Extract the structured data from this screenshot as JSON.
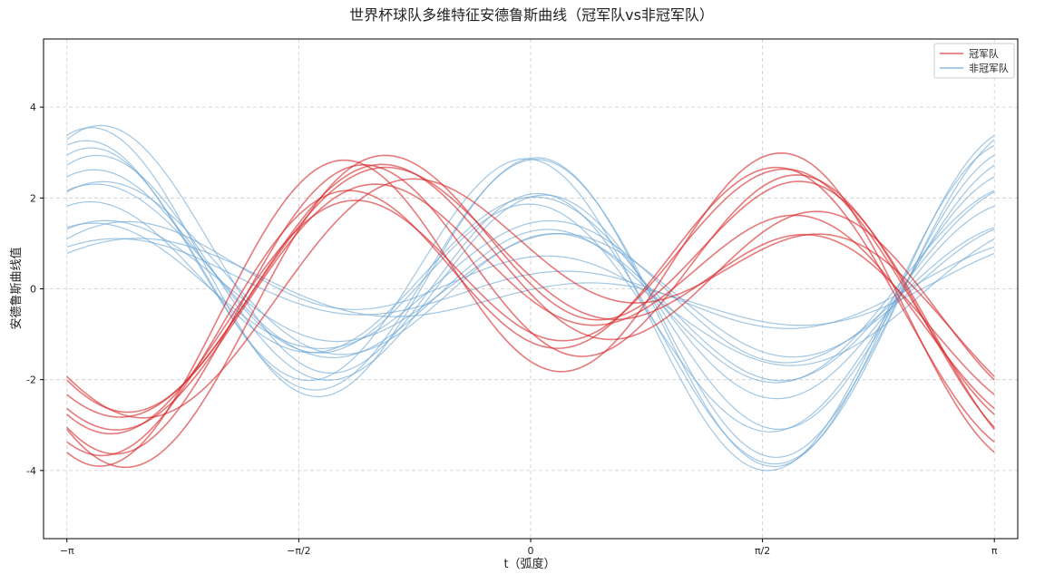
{
  "chart_data": {
    "type": "line",
    "title": "世界杯球队多维特征安德鲁斯曲线（冠军队vs非冠军队）",
    "xlabel": "t（弧度）",
    "ylabel": "安德鲁斯曲线值",
    "xlim": [
      -3.3,
      3.3
    ],
    "ylim": [
      -5.5,
      5.5
    ],
    "xticks": [
      {
        "value": -3.14159,
        "label": "−π"
      },
      {
        "value": -1.5708,
        "label": "−π/2"
      },
      {
        "value": 0,
        "label": "0"
      },
      {
        "value": 1.5708,
        "label": "π/2"
      },
      {
        "value": 3.14159,
        "label": "π"
      }
    ],
    "yticks": [
      {
        "value": -4,
        "label": "-4"
      },
      {
        "value": -2,
        "label": "-2"
      },
      {
        "value": 0,
        "label": "0"
      },
      {
        "value": 2,
        "label": "2"
      },
      {
        "value": 4,
        "label": "4"
      }
    ],
    "grid": true,
    "legend_position": "top-right",
    "legend": [
      {
        "label": "冠军队",
        "color": "#d62728"
      },
      {
        "label": "非冠军队",
        "color": "#6fa8d4"
      }
    ],
    "groups": [
      {
        "name": "冠军队",
        "color": "#d62728",
        "series": [
          {
            "coef": [
              0.2,
              -0.1,
              0.95,
              -1.65,
              -1.2
            ]
          },
          {
            "coef": [
              0.0,
              0.3,
              1.0,
              -1.2,
              -2.6
            ]
          },
          {
            "coef": [
              0.1,
              0.2,
              1.4,
              -1.5,
              -0.6
            ]
          },
          {
            "coef": [
              -0.1,
              0.5,
              1.1,
              -1.0,
              -2.2
            ]
          },
          {
            "coef": [
              0.15,
              0.4,
              1.6,
              -1.8,
              -1.6
            ]
          },
          {
            "coef": [
              -0.05,
              0.1,
              1.2,
              -1.3,
              -1.4
            ]
          },
          {
            "coef": [
              0.05,
              0.6,
              0.9,
              -1.1,
              -1.9
            ]
          },
          {
            "coef": [
              0.1,
              -0.2,
              1.3,
              -1.4,
              -1.1
            ]
          },
          {
            "coef": [
              0.0,
              0.25,
              1.05,
              -1.6,
              -2.0
            ]
          }
        ]
      },
      {
        "name": "非冠军队",
        "color": "#6fa8d4",
        "series": [
          {
            "coef": [
              0.0,
              -0.7,
              -0.2,
              0.55,
              0.9
            ]
          },
          {
            "coef": [
              0.05,
              -0.4,
              -0.5,
              0.7,
              1.6
            ]
          },
          {
            "coef": [
              -0.05,
              -0.9,
              -0.3,
              0.4,
              2.2
            ]
          },
          {
            "coef": [
              0.02,
              -0.2,
              -0.1,
              0.6,
              1.2
            ]
          },
          {
            "coef": [
              -0.02,
              -1.1,
              -0.6,
              0.8,
              2.7
            ]
          },
          {
            "coef": [
              0.03,
              -0.5,
              0.1,
              0.35,
              1.9
            ]
          },
          {
            "coef": [
              -0.03,
              -0.3,
              -0.4,
              0.5,
              0.4
            ]
          },
          {
            "coef": [
              0.04,
              -0.8,
              -0.25,
              0.65,
              3.1
            ]
          },
          {
            "coef": [
              0.0,
              -0.15,
              0.05,
              0.45,
              1.4
            ]
          },
          {
            "coef": [
              -0.04,
              -0.6,
              -0.35,
              0.75,
              2.4
            ]
          },
          {
            "coef": [
              0.01,
              -1.0,
              -0.15,
              0.3,
              3.0
            ]
          },
          {
            "coef": [
              0.02,
              -0.35,
              -0.45,
              0.55,
              1.7
            ]
          },
          {
            "coef": [
              -0.01,
              -0.75,
              -0.05,
              0.6,
              2.9
            ]
          },
          {
            "coef": [
              0.03,
              -0.25,
              -0.3,
              0.4,
              0.6
            ]
          }
        ]
      }
    ]
  }
}
